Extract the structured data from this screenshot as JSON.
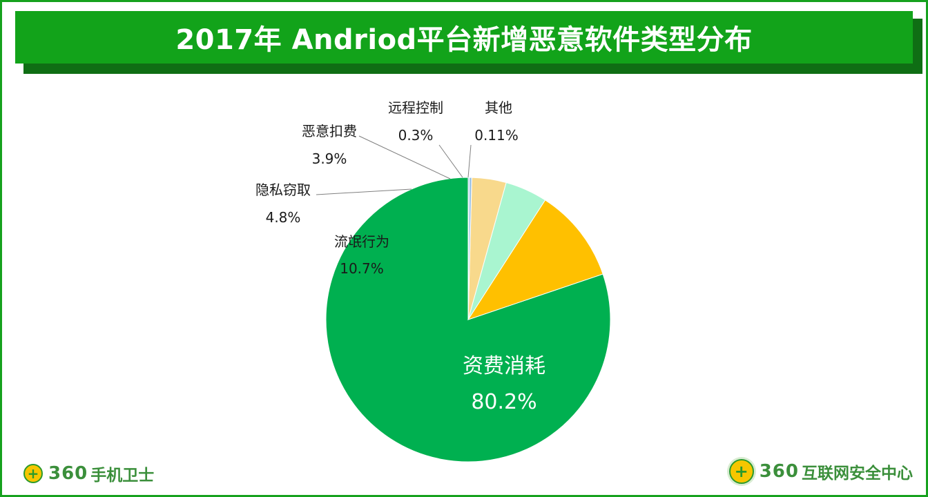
{
  "header": {
    "title": "2017年 Andriod平台新增恶意软件类型分布"
  },
  "chart_data": {
    "type": "pie",
    "title": "2017年 Andriod平台新增恶意软件类型分布",
    "slices": [
      {
        "label": "资费消耗",
        "value": 80.2,
        "value_text": "80.2%",
        "color": "#00b050"
      },
      {
        "label": "流氓行为",
        "value": 10.7,
        "value_text": "10.7%",
        "color": "#ffc000"
      },
      {
        "label": "隐私窃取",
        "value": 4.8,
        "value_text": "4.8%",
        "color": "#a9f5d0"
      },
      {
        "label": "恶意扣费",
        "value": 3.9,
        "value_text": "3.9%",
        "color": "#f8d98c"
      },
      {
        "label": "远程控制",
        "value": 0.3,
        "value_text": "0.3%",
        "color": "#9dc3e6"
      },
      {
        "label": "其他",
        "value": 0.11,
        "value_text": "0.11%",
        "color": "#5b9bd5"
      }
    ],
    "start_angle_deg": 0,
    "direction": "counterclockwise",
    "legend": "none",
    "labels": "outside-with-leader-lines"
  },
  "footer": {
    "left_logo_number": "360",
    "left_logo_text": "手机卫士",
    "right_logo_number": "360",
    "right_logo_text": "互联网安全中心",
    "brand_color": "#3b8f3b"
  }
}
